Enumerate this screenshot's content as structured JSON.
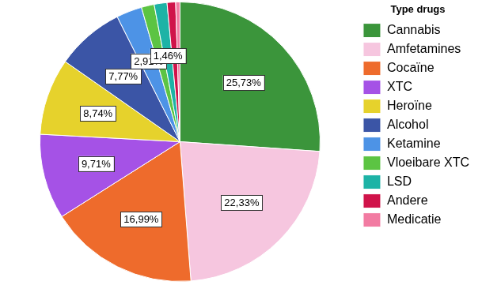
{
  "chart_data": {
    "type": "pie",
    "legend_title": "Type drugs",
    "categories": [
      "Cannabis",
      "Amfetamines",
      "Cocaïne",
      "XTC",
      "Heroïne",
      "Alcohol",
      "Ketamine",
      "Vloeibare XTC",
      "LSD",
      "Andere",
      "Medicatie"
    ],
    "values": [
      25.73,
      22.33,
      16.99,
      9.71,
      8.74,
      7.77,
      2.91,
      1.46,
      1.46,
      0.97,
      0.49
    ],
    "value_labels": [
      "25,73%",
      "22,33%",
      "16,99%",
      "9,71%",
      "8,74%",
      "7,77%",
      "2,91%",
      null,
      "1,46%",
      null,
      null
    ],
    "colors": [
      "#3b953b",
      "#f6c6df",
      "#ee6b2c",
      "#a552e6",
      "#e6d22c",
      "#3b55a6",
      "#4d93e6",
      "#5cc443",
      "#1db3a6",
      "#d0134a",
      "#f27ba2"
    ],
    "data_labels": true,
    "legend": "right"
  }
}
